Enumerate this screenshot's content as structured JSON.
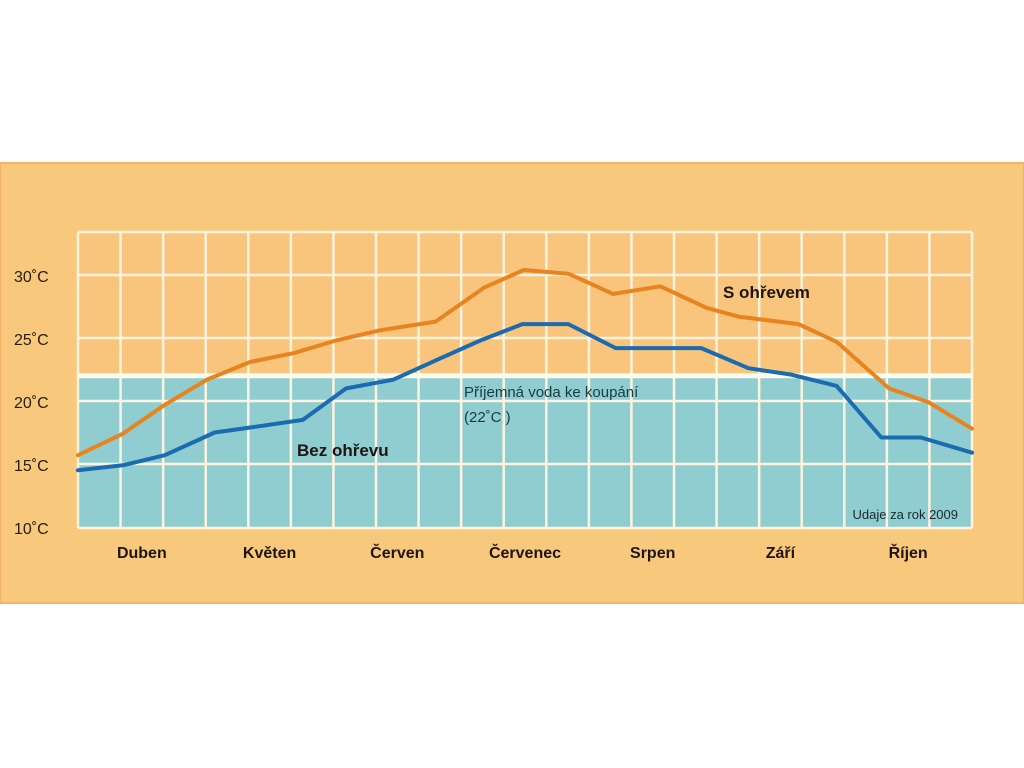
{
  "colors": {
    "panel": "#f8c87c",
    "panel_border": "#f3b46a",
    "warm_zone": "#f9c57c",
    "comfort_zone": "#8fcdd0",
    "grid": "#fdf3df",
    "heated": "#e8841f",
    "unheated": "#1b6bb1"
  },
  "chart_data": {
    "type": "line",
    "title": "",
    "xlabel": "",
    "ylabel": "",
    "x_units": "months since start of April (0 = 1 April, 7 = end of October)",
    "xlim": [
      0,
      7
    ],
    "ylim": [
      10,
      33.4
    ],
    "yticks": [
      {
        "value": 30,
        "label": "30˚C"
      },
      {
        "value": 25,
        "label": "25˚C"
      },
      {
        "value": 20,
        "label": "20˚C"
      },
      {
        "value": 15,
        "label": "15˚C"
      },
      {
        "value": 10,
        "label": "10˚C"
      }
    ],
    "categories": [
      "Duben",
      "Květen",
      "Červen",
      "Červenec",
      "Srpen",
      "Září",
      "Říjen"
    ],
    "grid": true,
    "grid_subdivisions_per_month": 3,
    "threshold": {
      "value": 22,
      "label_line1": "Příjemná voda ke koupání",
      "label_line2": "(22˚C )"
    },
    "series": [
      {
        "name": "S ohřevem",
        "color_key": "heated",
        "x": [
          0,
          0.35,
          0.68,
          1.01,
          1.35,
          1.69,
          2.02,
          2.36,
          2.8,
          3.18,
          3.49,
          3.84,
          4.19,
          4.56,
          4.92,
          5.17,
          5.64,
          5.94,
          6.35,
          6.66,
          7.0
        ],
        "values": [
          15.7,
          17.4,
          19.7,
          21.7,
          23.1,
          23.8,
          24.8,
          25.6,
          26.3,
          29.0,
          30.4,
          30.1,
          28.5,
          29.1,
          27.4,
          26.7,
          26.1,
          24.7,
          21.0,
          19.9,
          17.8
        ]
      },
      {
        "name": "Bez ohřevu",
        "color_key": "unheated",
        "x": [
          0,
          0.35,
          0.68,
          1.07,
          1.35,
          1.76,
          2.1,
          2.47,
          2.84,
          3.15,
          3.48,
          3.84,
          4.21,
          4.88,
          5.25,
          5.58,
          5.94,
          6.29,
          6.6,
          7.0
        ],
        "values": [
          14.5,
          14.9,
          15.7,
          17.5,
          17.9,
          18.5,
          21.0,
          21.7,
          23.4,
          24.8,
          26.1,
          26.1,
          24.2,
          24.2,
          22.6,
          22.1,
          21.2,
          17.1,
          17.1,
          15.9
        ]
      }
    ],
    "annotation": "Udaje za rok 2009"
  }
}
